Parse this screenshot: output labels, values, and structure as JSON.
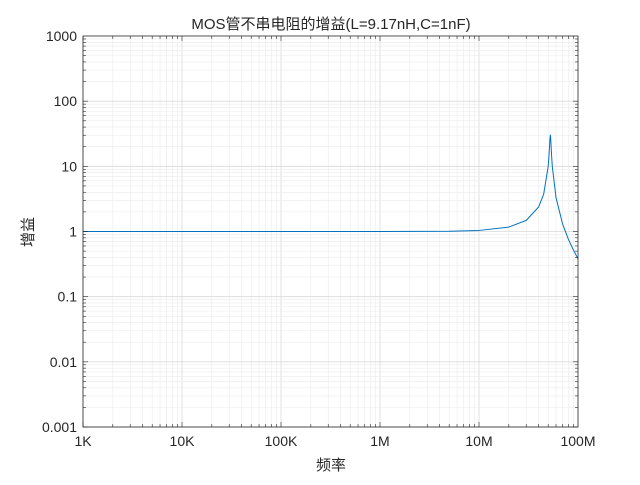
{
  "chart_data": {
    "type": "line",
    "title": "MOS管不串电阻的增益(L=9.17nH,C=1nF)",
    "xlabel": "频率",
    "ylabel": "增益",
    "xscale": "log",
    "yscale": "log",
    "xlim": [
      1000,
      100000000
    ],
    "ylim": [
      0.001,
      1000
    ],
    "grid": true,
    "minor_grid": true,
    "x_ticks": [
      {
        "value": 1000,
        "label": "1K"
      },
      {
        "value": 10000,
        "label": "10K"
      },
      {
        "value": 100000,
        "label": "100K"
      },
      {
        "value": 1000000,
        "label": "1M"
      },
      {
        "value": 10000000,
        "label": "10M"
      },
      {
        "value": 100000000,
        "label": "100M"
      }
    ],
    "y_ticks": [
      {
        "value": 0.001,
        "label": "0.001"
      },
      {
        "value": 0.01,
        "label": "0.01"
      },
      {
        "value": 0.1,
        "label": "0.1"
      },
      {
        "value": 1,
        "label": "1"
      },
      {
        "value": 10,
        "label": "10"
      },
      {
        "value": 100,
        "label": "100"
      },
      {
        "value": 1000,
        "label": "1000"
      }
    ],
    "series": [
      {
        "color": "#0072BD",
        "x": [
          1000,
          1000000,
          5000000,
          10000000,
          20000000,
          30000000,
          40000000,
          45000000,
          50000000,
          51000000,
          52000000,
          52560000,
          53000000,
          54000000,
          55000000,
          60000000,
          70000000,
          80000000,
          90000000,
          100000000
        ],
        "y": [
          1,
          1,
          1.009,
          1.038,
          1.169,
          1.483,
          2.376,
          3.74,
          10.0,
          15.0,
          25.7,
          30.3,
          26.8,
          15.4,
          9.9,
          3.3,
          1.293,
          0.759,
          0.518,
          0.382
        ]
      }
    ]
  }
}
